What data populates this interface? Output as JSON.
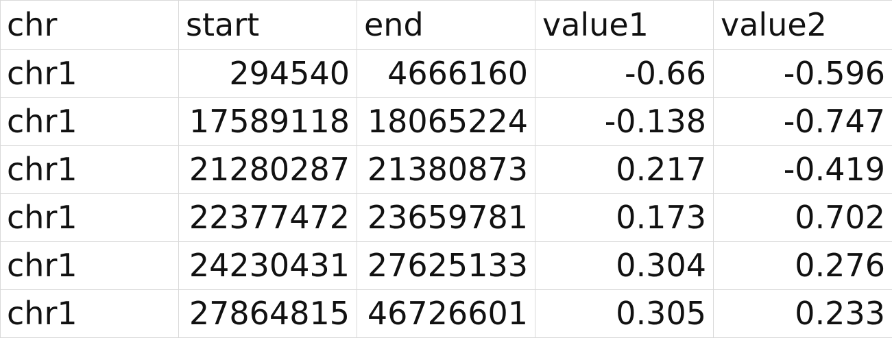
{
  "sheet": {
    "headers": [
      "chr",
      "start",
      "end",
      "value1",
      "value2"
    ],
    "rows": [
      [
        "chr1",
        "294540",
        "4666160",
        "-0.66",
        "-0.596"
      ],
      [
        "chr1",
        "17589118",
        "18065224",
        "-0.138",
        "-0.747"
      ],
      [
        "chr1",
        "21280287",
        "21380873",
        "0.217",
        "-0.419"
      ],
      [
        "chr1",
        "22377472",
        "23659781",
        "0.173",
        "0.702"
      ],
      [
        "chr1",
        "24230431",
        "27625133",
        "0.304",
        "0.276"
      ],
      [
        "chr1",
        "27864815",
        "46726601",
        "0.305",
        "0.233"
      ]
    ]
  }
}
